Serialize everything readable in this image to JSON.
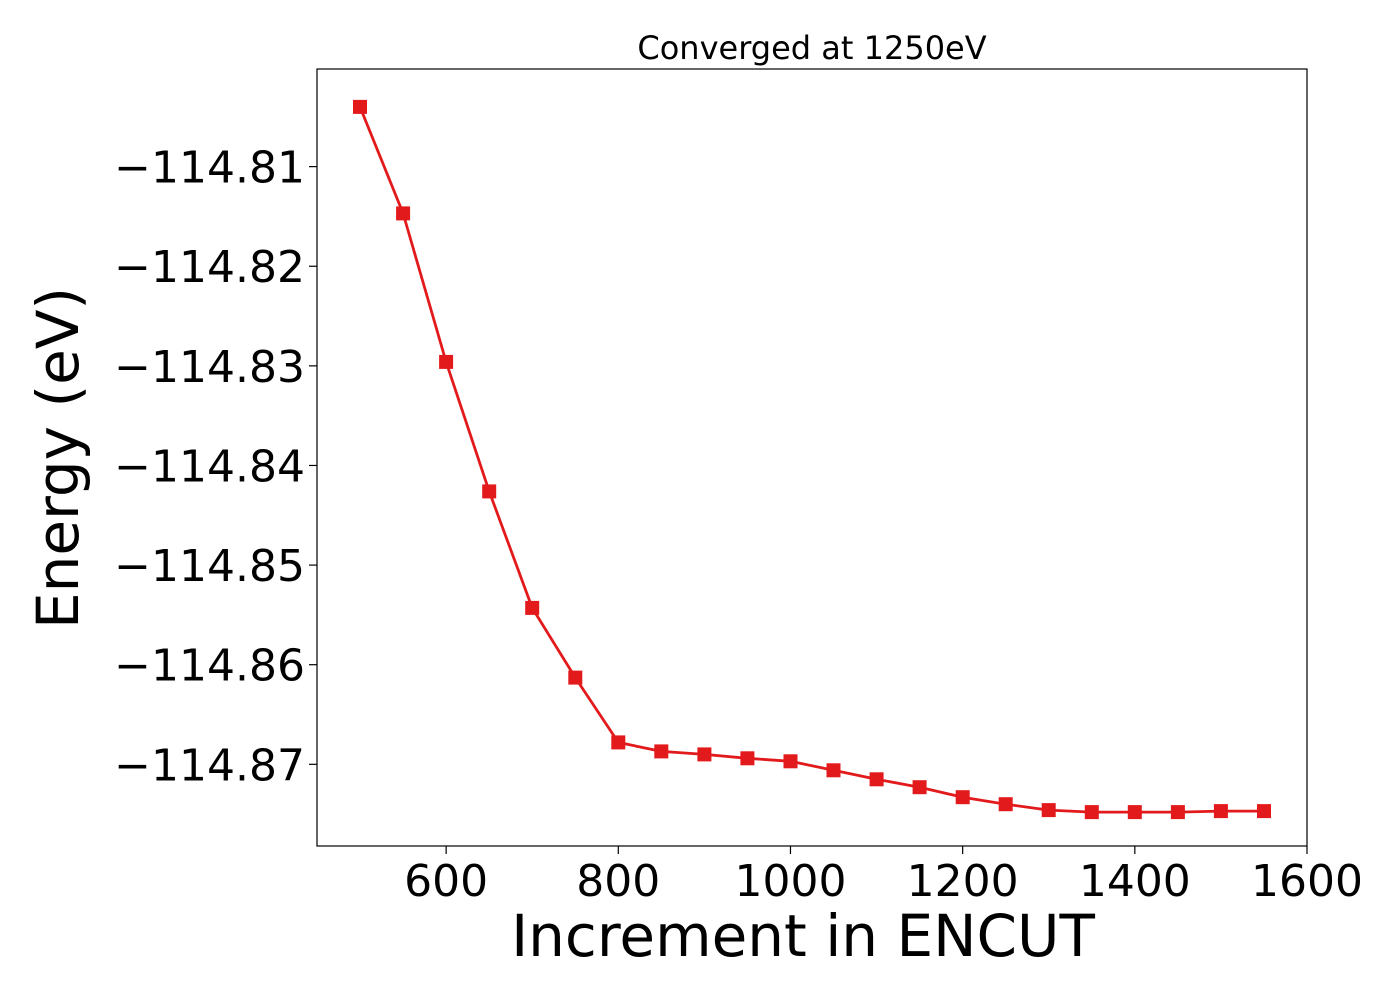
{
  "chart_data": {
    "type": "line",
    "title": "Converged at 1250eV",
    "xlabel": "Increment in ENCUT",
    "ylabel": "Energy (eV)",
    "xlim": [
      450,
      1600
    ],
    "ylim": [
      -114.8782,
      -114.8002
    ],
    "x_ticks": [
      600,
      800,
      1000,
      1200,
      1400,
      1600
    ],
    "x_tick_labels": [
      "600",
      "800",
      "1000",
      "1200",
      "1400",
      "1600"
    ],
    "y_ticks": [
      -114.81,
      -114.82,
      -114.83,
      -114.84,
      -114.85,
      -114.86,
      -114.87
    ],
    "y_tick_labels": [
      "−114.81",
      "−114.82",
      "−114.83",
      "−114.84",
      "−114.85",
      "−114.86",
      "−114.87"
    ],
    "grid": false,
    "series": [
      {
        "color": "#e31a1c",
        "marker": "square",
        "x": [
          500,
          550,
          600,
          650,
          700,
          750,
          800,
          850,
          900,
          950,
          1000,
          1050,
          1100,
          1150,
          1200,
          1250,
          1300,
          1350,
          1400,
          1450,
          1500,
          1550
        ],
        "y": [
          -114.804,
          -114.8147,
          -114.8296,
          -114.8426,
          -114.8543,
          -114.8613,
          -114.8678,
          -114.8687,
          -114.869,
          -114.8694,
          -114.8697,
          -114.8706,
          -114.8715,
          -114.8723,
          -114.8733,
          -114.874,
          -114.8746,
          -114.8748,
          -114.8748,
          -114.8748,
          -114.8747,
          -114.8747
        ]
      }
    ]
  }
}
